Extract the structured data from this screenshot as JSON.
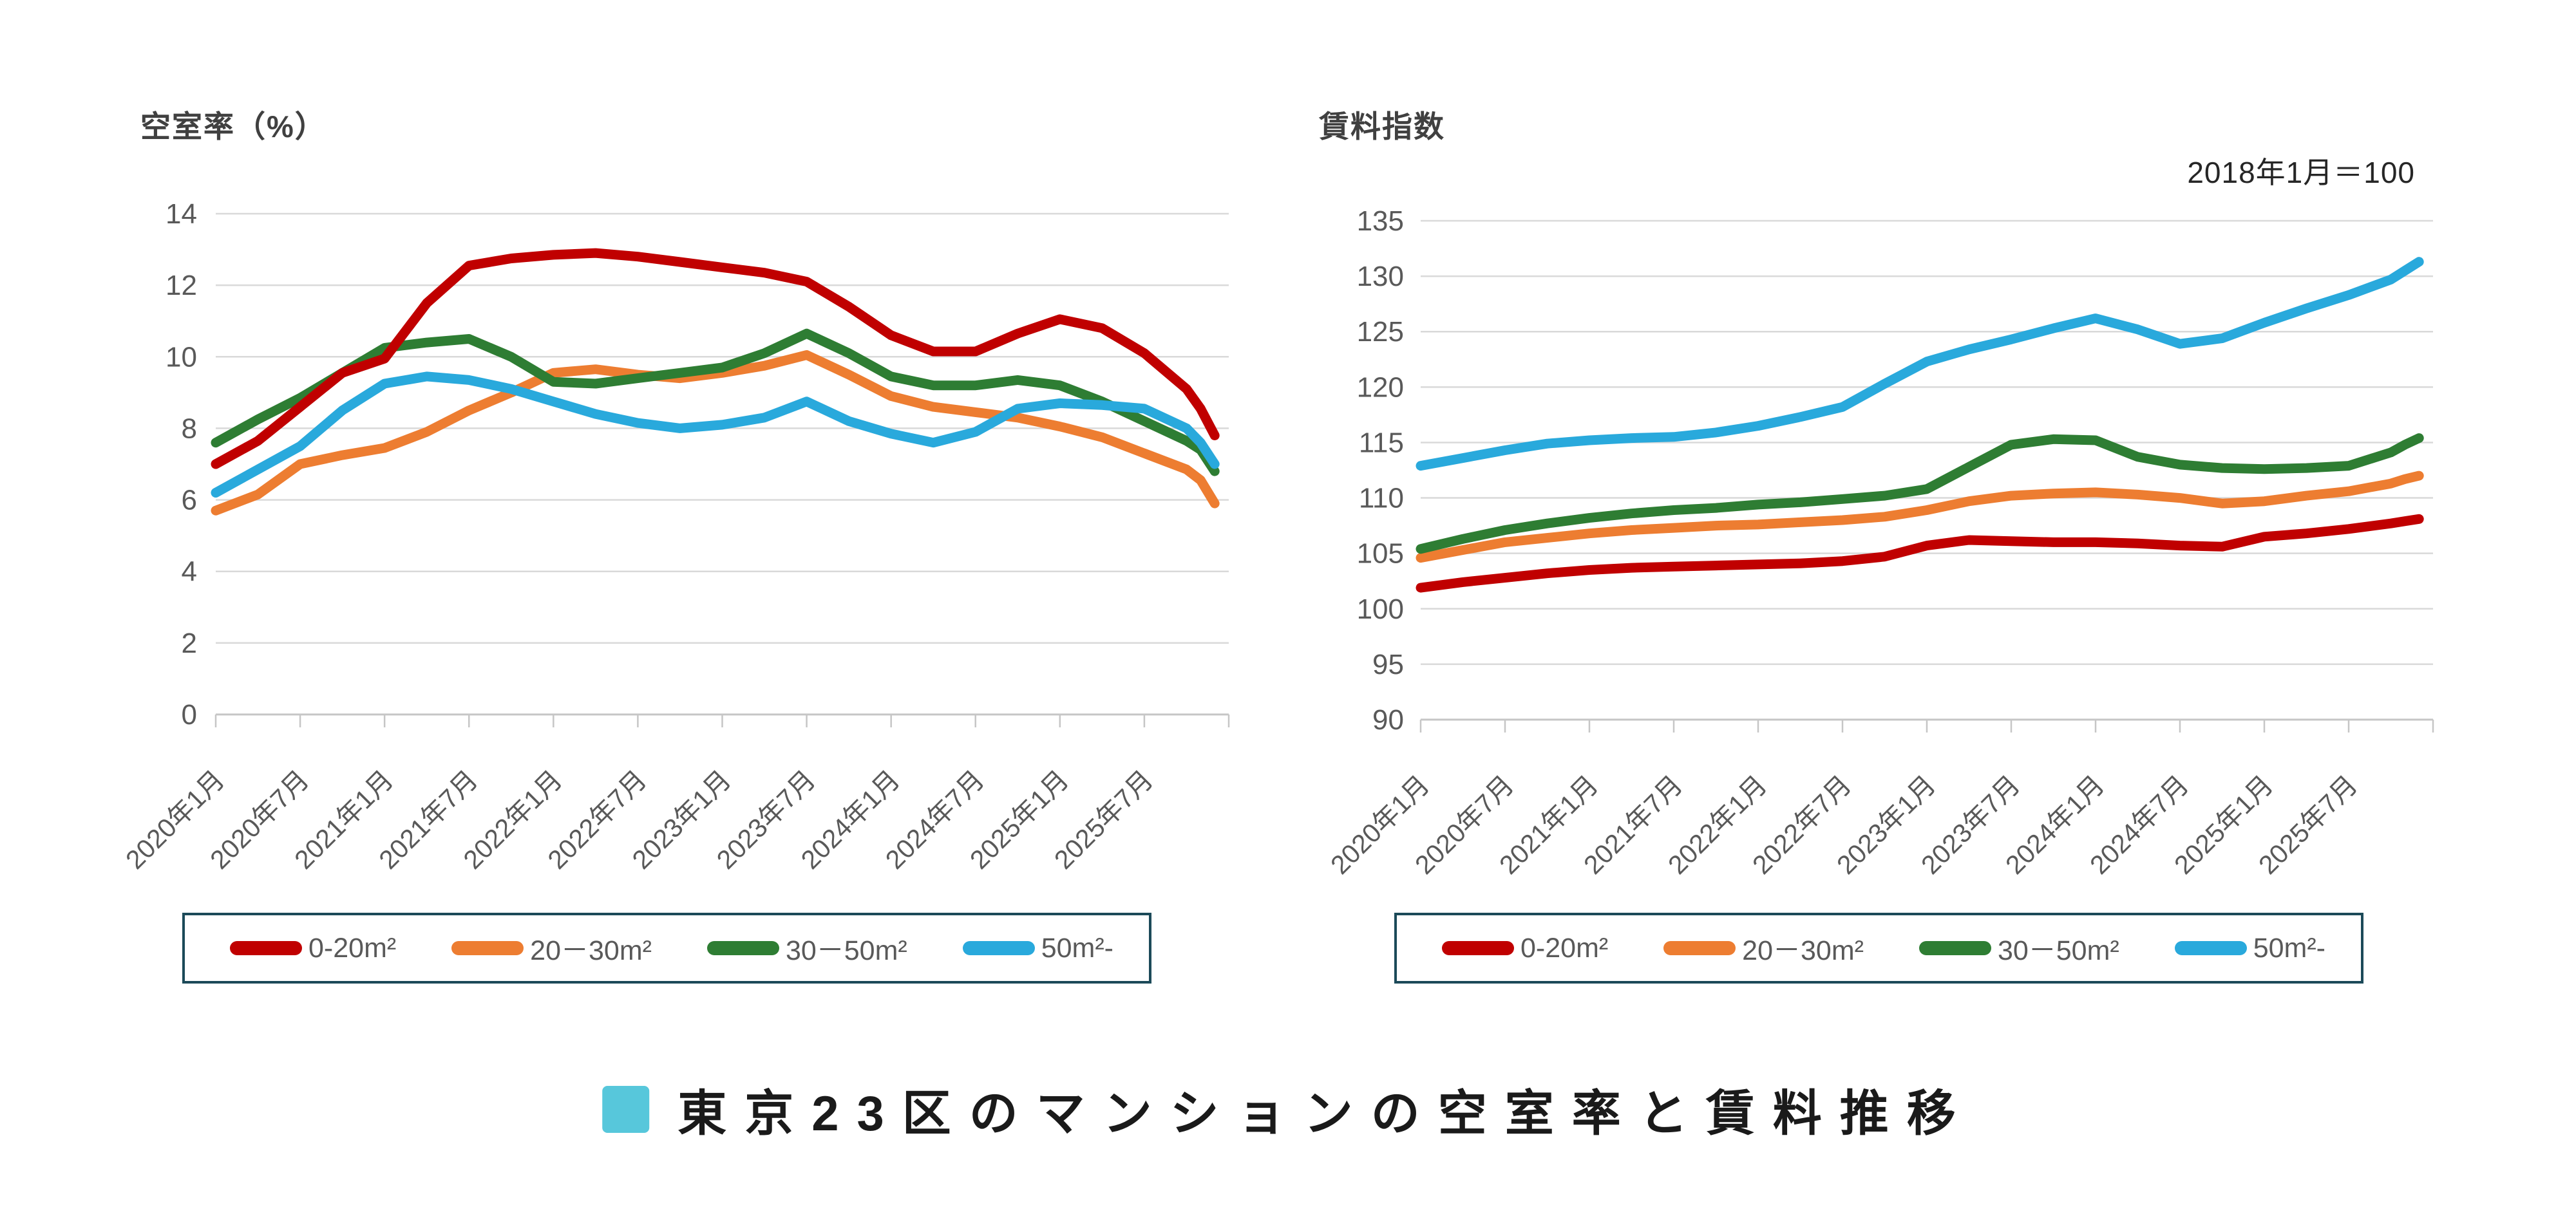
{
  "page": {
    "title": "東京23区のマンションの空室率と賃料推移",
    "title_marker_color": "#57c7db",
    "background_color": "#ffffff"
  },
  "legend": {
    "border_color": "#1c4a59",
    "text_color": "#595959",
    "items": [
      {
        "label": "0-20m²",
        "color": "#c00000"
      },
      {
        "label": "20－30m²",
        "color": "#ed7d31"
      },
      {
        "label": "30－50m²",
        "color": "#2e7d33"
      },
      {
        "label": "50m²-",
        "color": "#29a9dc"
      }
    ]
  },
  "axes_style": {
    "grid_color": "#d9d9d9",
    "axis_color": "#c6c6c6",
    "tick_label_color": "#595959"
  },
  "chart_data": [
    {
      "type": "line",
      "title": "空室率（%）",
      "ylabel": "空室率（%）",
      "ylim": [
        0,
        14
      ],
      "y_ticks": [
        0,
        2,
        4,
        6,
        8,
        10,
        12,
        14
      ],
      "grid": true,
      "legend_position": "bottom",
      "x_axis_total_months": 72,
      "x_tick_months": [
        0,
        6,
        12,
        18,
        24,
        30,
        36,
        42,
        48,
        54,
        60,
        66,
        72
      ],
      "x_tick_labels": [
        "2020年1月",
        "2020年7月",
        "2021年1月",
        "2021年7月",
        "2022年1月",
        "2022年7月",
        "2023年1月",
        "2023年7月",
        "2024年1月",
        "2024年7月",
        "2025年1月",
        "2025年7月",
        ""
      ],
      "sample_months": [
        0,
        3,
        6,
        9,
        12,
        15,
        18,
        21,
        24,
        27,
        30,
        33,
        36,
        39,
        42,
        45,
        48,
        51,
        54,
        57,
        60,
        63,
        66,
        69,
        70,
        71
      ],
      "draw_order": [
        1,
        2,
        3,
        0
      ],
      "series": [
        {
          "name": "0-20m²",
          "color": "#c00000",
          "values": [
            7.0,
            7.65,
            8.6,
            9.55,
            9.95,
            11.5,
            12.55,
            12.75,
            12.85,
            12.9,
            12.8,
            12.65,
            12.5,
            12.35,
            12.1,
            11.4,
            10.6,
            10.15,
            10.15,
            10.65,
            11.05,
            10.8,
            10.1,
            9.1,
            8.55,
            7.8
          ]
        },
        {
          "name": "20－30m²",
          "color": "#ed7d31",
          "values": [
            5.7,
            6.15,
            7.0,
            7.25,
            7.45,
            7.9,
            8.5,
            9.0,
            9.55,
            9.65,
            9.5,
            9.4,
            9.55,
            9.75,
            10.05,
            9.5,
            8.9,
            8.6,
            8.45,
            8.3,
            8.05,
            7.75,
            7.3,
            6.85,
            6.55,
            5.9
          ]
        },
        {
          "name": "30－50m²",
          "color": "#2e7d33",
          "values": [
            7.6,
            8.25,
            8.85,
            9.55,
            10.25,
            10.4,
            10.5,
            10.0,
            9.3,
            9.25,
            9.4,
            9.55,
            9.7,
            10.1,
            10.65,
            10.1,
            9.45,
            9.2,
            9.2,
            9.35,
            9.2,
            8.75,
            8.2,
            7.65,
            7.4,
            6.8
          ]
        },
        {
          "name": "50m²-",
          "color": "#29a9dc",
          "values": [
            6.2,
            6.85,
            7.5,
            8.5,
            9.25,
            9.45,
            9.35,
            9.1,
            8.75,
            8.4,
            8.15,
            8.0,
            8.1,
            8.3,
            8.75,
            8.2,
            7.85,
            7.6,
            7.9,
            8.55,
            8.7,
            8.65,
            8.55,
            8.0,
            7.6,
            7.0
          ]
        }
      ]
    },
    {
      "type": "line",
      "title": "賃料指数",
      "annotation": "2018年1月＝100",
      "ylim": [
        90,
        135
      ],
      "y_ticks": [
        90,
        95,
        100,
        105,
        110,
        115,
        120,
        125,
        130,
        135
      ],
      "grid": true,
      "legend_position": "bottom",
      "x_axis_total_months": 72,
      "x_tick_months": [
        0,
        6,
        12,
        18,
        24,
        30,
        36,
        42,
        48,
        54,
        60,
        66,
        72
      ],
      "x_tick_labels": [
        "2020年1月",
        "2020年7月",
        "2021年1月",
        "2021年7月",
        "2022年1月",
        "2022年7月",
        "2023年1月",
        "2023年7月",
        "2024年1月",
        "2024年7月",
        "2025年1月",
        "2025年7月",
        ""
      ],
      "sample_months": [
        0,
        3,
        6,
        9,
        12,
        15,
        18,
        21,
        24,
        27,
        30,
        33,
        36,
        39,
        42,
        45,
        48,
        51,
        54,
        57,
        60,
        63,
        66,
        69,
        70,
        71
      ],
      "draw_order": [
        1,
        2,
        3,
        0
      ],
      "series": [
        {
          "name": "0-20m²",
          "color": "#c00000",
          "values": [
            101.9,
            102.4,
            102.8,
            103.2,
            103.5,
            103.7,
            103.8,
            103.9,
            104.0,
            104.1,
            104.3,
            104.7,
            105.7,
            106.2,
            106.1,
            106.0,
            106.0,
            105.9,
            105.7,
            105.6,
            106.5,
            106.8,
            107.2,
            107.7,
            107.9,
            108.1
          ]
        },
        {
          "name": "20－30m²",
          "color": "#ed7d31",
          "values": [
            104.6,
            105.3,
            106.0,
            106.4,
            106.8,
            107.1,
            107.3,
            107.5,
            107.6,
            107.8,
            108.0,
            108.3,
            108.9,
            109.7,
            110.2,
            110.4,
            110.5,
            110.3,
            110.0,
            109.5,
            109.7,
            110.2,
            110.6,
            111.3,
            111.7,
            112.0
          ]
        },
        {
          "name": "30－50m²",
          "color": "#2e7d33",
          "values": [
            105.4,
            106.3,
            107.1,
            107.7,
            108.2,
            108.6,
            108.9,
            109.1,
            109.4,
            109.6,
            109.9,
            110.2,
            110.8,
            112.8,
            114.8,
            115.3,
            115.2,
            113.7,
            113.0,
            112.7,
            112.6,
            112.7,
            112.9,
            114.1,
            114.8,
            115.4
          ]
        },
        {
          "name": "50m²-",
          "color": "#29a9dc",
          "values": [
            112.9,
            113.6,
            114.3,
            114.9,
            115.2,
            115.4,
            115.5,
            115.9,
            116.5,
            117.3,
            118.2,
            120.3,
            122.3,
            123.4,
            124.3,
            125.3,
            126.2,
            125.2,
            123.9,
            124.4,
            125.8,
            127.1,
            128.3,
            129.7,
            130.5,
            131.3
          ]
        }
      ]
    }
  ]
}
